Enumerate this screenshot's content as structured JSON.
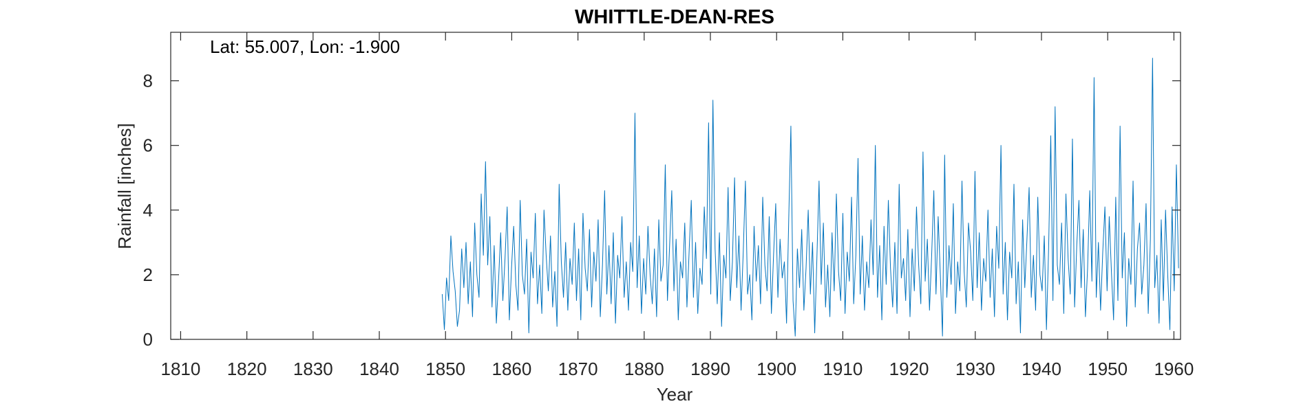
{
  "chart_data": {
    "type": "line",
    "title": "WHITTLE-DEAN-RES",
    "annotation": "Lat: 55.007, Lon: -1.900",
    "xlabel": "Year",
    "ylabel": "Rainfall [inches]",
    "xlim": [
      1808.5,
      1961
    ],
    "ylim": [
      0,
      9.5
    ],
    "xticks": [
      1810,
      1820,
      1830,
      1840,
      1850,
      1860,
      1870,
      1880,
      1890,
      1900,
      1910,
      1920,
      1930,
      1940,
      1950,
      1960
    ],
    "xtick_labels": [
      "1810",
      "1820",
      "1830",
      "1840",
      "1850",
      "1860",
      "1870",
      "1880",
      "1890",
      "1900",
      "1910",
      "1920",
      "1930",
      "1940",
      "1950",
      "1960"
    ],
    "yticks": [
      0,
      2,
      4,
      6,
      8
    ],
    "ytick_labels": [
      "0",
      "2",
      "4",
      "6",
      "8"
    ],
    "grid": false,
    "line_color": "#0072BD",
    "series": [
      {
        "start_year": 1849.5,
        "values": [
          1.4,
          0.3,
          1.9,
          1.2,
          3.2,
          2.1,
          1.5,
          0.4,
          0.9,
          2.8,
          1.6,
          3.0,
          1.1,
          2.4,
          0.7,
          3.6,
          2.0,
          1.3,
          4.5,
          2.6,
          5.5,
          2.3,
          3.8,
          1.0,
          2.9,
          0.5,
          1.8,
          3.3,
          1.2,
          2.5,
          4.1,
          0.6,
          2.2,
          3.5,
          1.7,
          0.9,
          4.3,
          2.0,
          1.4,
          3.1,
          0.2,
          2.7,
          1.9,
          3.9,
          1.1,
          2.3,
          0.8,
          4.0,
          2.6,
          1.5,
          3.2,
          1.0,
          2.1,
          0.4,
          4.8,
          2.4,
          1.3,
          3.0,
          0.9,
          2.5,
          1.7,
          3.6,
          1.2,
          2.8,
          0.6,
          3.9,
          2.2,
          1.5,
          3.4,
          1.0,
          2.7,
          1.8,
          3.7,
          0.7,
          2.3,
          4.6,
          1.4,
          2.9,
          1.1,
          3.3,
          0.5,
          2.6,
          1.9,
          3.8,
          1.3,
          2.4,
          0.9,
          3.0,
          2.1,
          7.0,
          1.6,
          3.2,
          0.8,
          2.5,
          1.4,
          3.5,
          2.0,
          1.1,
          2.8,
          0.7,
          3.7,
          1.8,
          2.3,
          5.4,
          1.2,
          2.9,
          4.6,
          1.5,
          3.1,
          0.6,
          2.4,
          1.9,
          3.6,
          1.0,
          2.7,
          4.3,
          1.3,
          3.0,
          0.8,
          2.2,
          1.7,
          4.1,
          2.5,
          6.7,
          1.4,
          7.4,
          2.8,
          1.1,
          3.3,
          0.4,
          2.6,
          1.9,
          4.7,
          1.2,
          2.4,
          5.0,
          1.6,
          3.2,
          0.9,
          2.7,
          4.9,
          1.4,
          2.0,
          0.6,
          3.5,
          1.8,
          2.9,
          1.1,
          4.4,
          2.3,
          1.5,
          3.8,
          0.8,
          2.6,
          4.2,
          1.3,
          3.1,
          1.9,
          2.4,
          0.5,
          3.7,
          6.6,
          1.2,
          0.1,
          2.8,
          1.6,
          3.4,
          0.9,
          2.2,
          4.0,
          1.4,
          3.0,
          0.2,
          2.5,
          4.9,
          1.7,
          3.6,
          1.0,
          2.3,
          0.7,
          3.3,
          1.5,
          4.5,
          2.1,
          1.2,
          3.9,
          0.8,
          2.7,
          1.8,
          4.4,
          1.1,
          2.6,
          5.6,
          1.4,
          3.2,
          0.9,
          2.4,
          1.6,
          3.7,
          2.0,
          6.0,
          1.3,
          2.9,
          0.6,
          3.5,
          1.7,
          4.3,
          2.2,
          1.0,
          3.0,
          0.8,
          4.8,
          1.9,
          2.5,
          1.2,
          3.4,
          0.7,
          2.8,
          1.5,
          4.1,
          2.3,
          1.1,
          5.8,
          1.8,
          3.1,
          0.9,
          2.6,
          4.6,
          1.4,
          3.8,
          2.0,
          0.1,
          5.7,
          1.3,
          2.9,
          1.7,
          4.2,
          0.8,
          2.4,
          1.5,
          4.9,
          2.1,
          1.0,
          3.6,
          2.7,
          1.2,
          5.2,
          1.6,
          3.3,
          0.9,
          2.5,
          1.8,
          4.0,
          1.3,
          2.8,
          0.7,
          3.5,
          2.2,
          6.0,
          1.4,
          3.0,
          0.6,
          2.7,
          1.9,
          4.8,
          1.1,
          2.4,
          0.2,
          3.7,
          1.6,
          3.1,
          4.7,
          1.3,
          2.6,
          0.9,
          4.4,
          2.0,
          1.5,
          3.2,
          0.3,
          2.8,
          6.3,
          1.2,
          7.2,
          2.3,
          1.7,
          3.6,
          0.8,
          4.5,
          2.5,
          1.4,
          6.2,
          1.0,
          2.9,
          4.3,
          1.6,
          3.4,
          0.7,
          2.2,
          4.6,
          1.8,
          8.1,
          1.3,
          3.0,
          0.9,
          2.7,
          4.1,
          1.5,
          3.8,
          2.1,
          0.6,
          4.4,
          1.2,
          6.6,
          1.9,
          3.3,
          0.4,
          2.5,
          1.7,
          4.9,
          1.0,
          2.8,
          3.6,
          1.4,
          2.3,
          4.2,
          0.8,
          3.1,
          8.7,
          1.6,
          2.6,
          0.5,
          3.7,
          1.2,
          4.0,
          2.0,
          0.3,
          4.1,
          1.5,
          5.4,
          2.2
        ]
      }
    ]
  }
}
